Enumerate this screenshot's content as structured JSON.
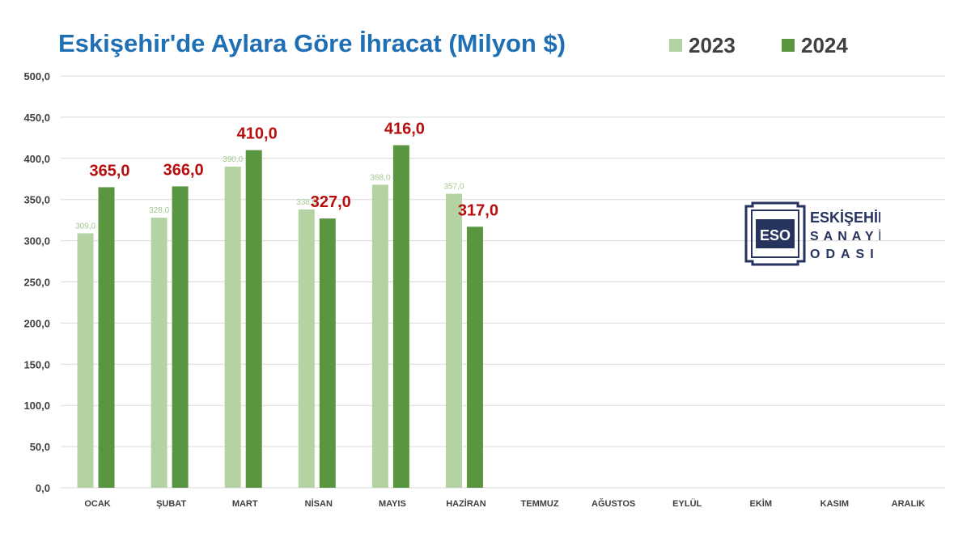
{
  "colors": {
    "series_2023": "#b5d2a3",
    "series_2024": "#5a9640",
    "highlight_label": "#b80d0d",
    "small_label": "#a5c98f",
    "title": "#1f6fb5",
    "axis_text": "#404040",
    "grid": "#dadada",
    "logo": "#26335e"
  },
  "logo": {
    "mark": "ESO",
    "lines": [
      "ESKİŞEHİR",
      "SANAYİ",
      "ODASI"
    ],
    "icon": "eso-logo-icon"
  },
  "chart_data": {
    "type": "bar",
    "title": "Eskişehir'de Aylara Göre İhracat (Milyon $)",
    "categories": [
      "OCAK",
      "ŞUBAT",
      "MART",
      "NİSAN",
      "MAYIS",
      "HAZİRAN",
      "TEMMUZ",
      "AĞUSTOS",
      "EYLÜL",
      "EKİM",
      "KASIM",
      "ARALIK"
    ],
    "series": [
      {
        "name": "2023",
        "values": [
          309.0,
          328.0,
          390.0,
          338.0,
          368.0,
          357.0,
          null,
          null,
          null,
          null,
          null,
          null
        ],
        "labels": [
          "309,0",
          "328,0",
          "390,0",
          "338,0",
          "368,0",
          "357,0",
          "",
          "",
          "",
          "",
          "",
          ""
        ]
      },
      {
        "name": "2024",
        "values": [
          365.0,
          366.0,
          410.0,
          327.0,
          416.0,
          317.0,
          null,
          null,
          null,
          null,
          null,
          null
        ],
        "labels": [
          "365,0",
          "366,0",
          "410,0",
          "327,0",
          "416,0",
          "317,0",
          "",
          "",
          "",
          "",
          "",
          ""
        ]
      }
    ],
    "ylim": [
      0,
      500
    ],
    "yticks": [
      0,
      50,
      100,
      150,
      200,
      250,
      300,
      350,
      400,
      450,
      500
    ],
    "ytick_labels": [
      "0,0",
      "50,0",
      "100,0",
      "150,0",
      "200,0",
      "250,0",
      "300,0",
      "350,0",
      "400,0",
      "450,0",
      "500,0"
    ],
    "xlabel": "",
    "ylabel": "",
    "grid": true,
    "legend": "top-right"
  }
}
